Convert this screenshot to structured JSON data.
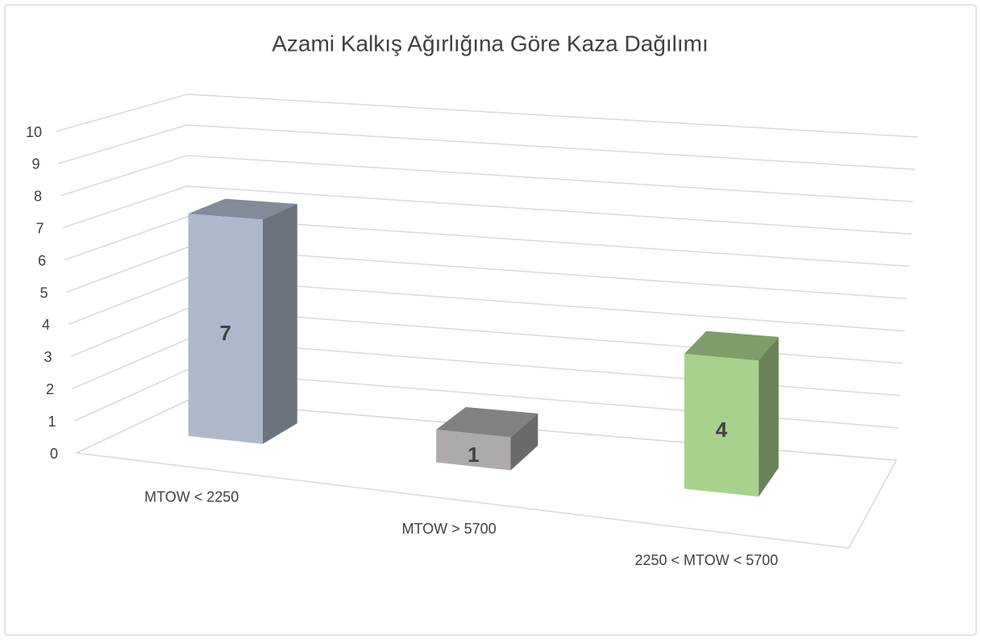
{
  "chart_data": {
    "type": "bar3d",
    "title": "Azami Kalkış Ağırlığına Göre Kaza Dağılımı",
    "categories": [
      "MTOW < 2250",
      "MTOW > 5700",
      "2250 < MTOW < 5700"
    ],
    "values": [
      7,
      1,
      4
    ],
    "colors": [
      "#adb9ca",
      "#aeaaaa",
      "#a9d18e"
    ],
    "ylim": [
      0,
      10
    ],
    "yticks": [
      0,
      1,
      2,
      3,
      4,
      5,
      6,
      7,
      8,
      9,
      10
    ],
    "grid": true
  }
}
